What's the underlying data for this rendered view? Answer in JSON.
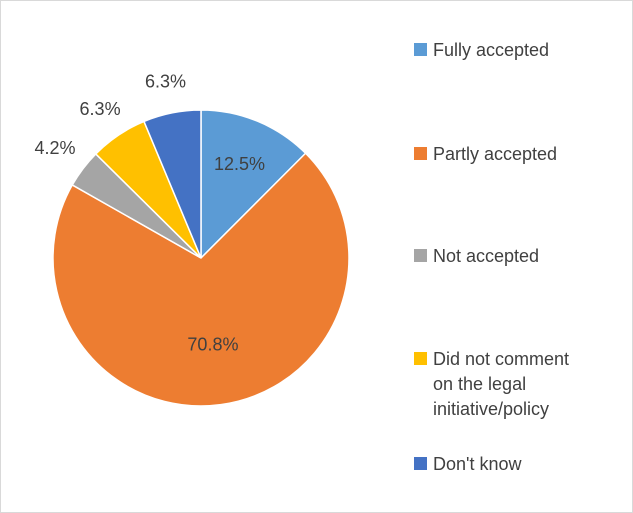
{
  "chart_data": {
    "type": "pie",
    "title": "",
    "categories": [
      "Fully accepted",
      "Partly accepted",
      "Not accepted",
      "Did not comment on the legal initiative/policy",
      "Don't know"
    ],
    "values": [
      12.5,
      70.8,
      4.2,
      6.3,
      6.3
    ],
    "labels": [
      "12.5%",
      "70.8%",
      "4.2%",
      "6.3%",
      "6.3%"
    ],
    "colors": [
      "#5b9bd5",
      "#ed7d31",
      "#a5a5a5",
      "#ffc000",
      "#4472c4"
    ],
    "legend_position": "right"
  },
  "legend": {
    "items": [
      {
        "label": "Fully accepted",
        "color": "#5b9bd5"
      },
      {
        "label": "Partly accepted",
        "color": "#ed7d31"
      },
      {
        "label": "Not accepted",
        "color": "#a5a5a5"
      },
      {
        "label": "Did not comment on the legal initiative/policy",
        "color": "#ffc000"
      },
      {
        "label": "Don't know",
        "color": "#4472c4"
      }
    ]
  }
}
